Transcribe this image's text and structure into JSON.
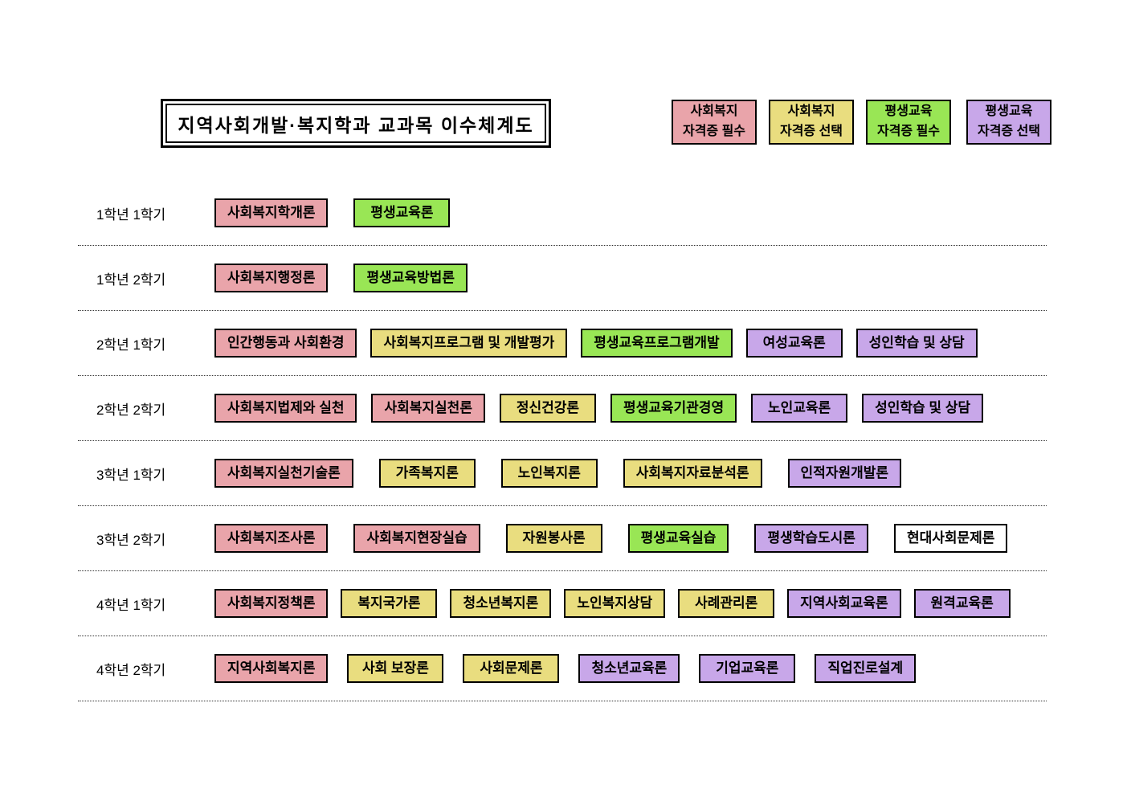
{
  "title": "지역사회개발·복지학과 교과목 이수체계도",
  "colors": {
    "social_required": "#E9A4AA",
    "social_elective": "#E9DD7F",
    "lifelong_required": "#99E655",
    "lifelong_elective": "#C8A7E9",
    "general": "#FFFFFF"
  },
  "legend": [
    {
      "line1": "사회복지",
      "line2": "자격증 필수",
      "category": "social_required"
    },
    {
      "line1": "사회복지",
      "line2": "자격증 선택",
      "category": "social_elective"
    },
    {
      "line1": "평생교육",
      "line2": "자격증 필수",
      "category": "lifelong_required"
    },
    {
      "line1": "평생교육",
      "line2": "자격증 선택",
      "category": "lifelong_elective"
    }
  ],
  "rows": [
    {
      "label": "1학년 1학기",
      "courses": [
        {
          "name": "사회복지학개론",
          "category": "social_required"
        },
        {
          "name": "평생교육론",
          "category": "lifelong_required"
        }
      ]
    },
    {
      "label": "1학년 2학기",
      "courses": [
        {
          "name": "사회복지행정론",
          "category": "social_required"
        },
        {
          "name": "평생교육방법론",
          "category": "lifelong_required"
        }
      ]
    },
    {
      "label": "2학년 1학기",
      "courses": [
        {
          "name": "인간행동과 사회환경",
          "category": "social_required"
        },
        {
          "name": "사회복지프로그램 및 개발평가",
          "category": "social_elective"
        },
        {
          "name": "평생교육프로그램개발",
          "category": "lifelong_required"
        },
        {
          "name": "여성교육론",
          "category": "lifelong_elective"
        },
        {
          "name": "성인학습 및 상담",
          "category": "lifelong_elective"
        }
      ]
    },
    {
      "label": "2학년 2학기",
      "courses": [
        {
          "name": "사회복지법제와 실천",
          "category": "social_required"
        },
        {
          "name": "사회복지실천론",
          "category": "social_required"
        },
        {
          "name": "정신건강론",
          "category": "social_elective"
        },
        {
          "name": "평생교육기관경영",
          "category": "lifelong_required"
        },
        {
          "name": "노인교육론",
          "category": "lifelong_elective"
        },
        {
          "name": "성인학습 및 상담",
          "category": "lifelong_elective"
        }
      ]
    },
    {
      "label": "3학년 1학기",
      "courses": [
        {
          "name": "사회복지실천기술론",
          "category": "social_required"
        },
        {
          "name": "가족복지론",
          "category": "social_elective"
        },
        {
          "name": "노인복지론",
          "category": "social_elective"
        },
        {
          "name": "사회복지자료분석론",
          "category": "social_elective"
        },
        {
          "name": "인적자원개발론",
          "category": "lifelong_elective"
        }
      ]
    },
    {
      "label": "3학년 2학기",
      "courses": [
        {
          "name": "사회복지조사론",
          "category": "social_required"
        },
        {
          "name": "사회복지현장실습",
          "category": "social_required"
        },
        {
          "name": "자원봉사론",
          "category": "social_elective"
        },
        {
          "name": "평생교육실습",
          "category": "lifelong_required"
        },
        {
          "name": "평생학습도시론",
          "category": "lifelong_elective"
        },
        {
          "name": "현대사회문제론",
          "category": "general"
        }
      ]
    },
    {
      "label": "4학년 1학기",
      "courses": [
        {
          "name": "사회복지정책론",
          "category": "social_required"
        },
        {
          "name": "복지국가론",
          "category": "social_elective"
        },
        {
          "name": "청소년복지론",
          "category": "social_elective"
        },
        {
          "name": "노인복지상담",
          "category": "social_elective"
        },
        {
          "name": "사례관리론",
          "category": "social_elective"
        },
        {
          "name": "지역사회교육론",
          "category": "lifelong_elective"
        },
        {
          "name": "원격교육론",
          "category": "lifelong_elective"
        }
      ]
    },
    {
      "label": "4학년 2학기",
      "courses": [
        {
          "name": "지역사회복지론",
          "category": "social_required"
        },
        {
          "name": "사회 보장론",
          "category": "social_elective"
        },
        {
          "name": "사회문제론",
          "category": "social_elective"
        },
        {
          "name": "청소년교육론",
          "category": "lifelong_elective"
        },
        {
          "name": "기업교육론",
          "category": "lifelong_elective"
        },
        {
          "name": "직업진로설계",
          "category": "lifelong_elective"
        }
      ]
    }
  ]
}
